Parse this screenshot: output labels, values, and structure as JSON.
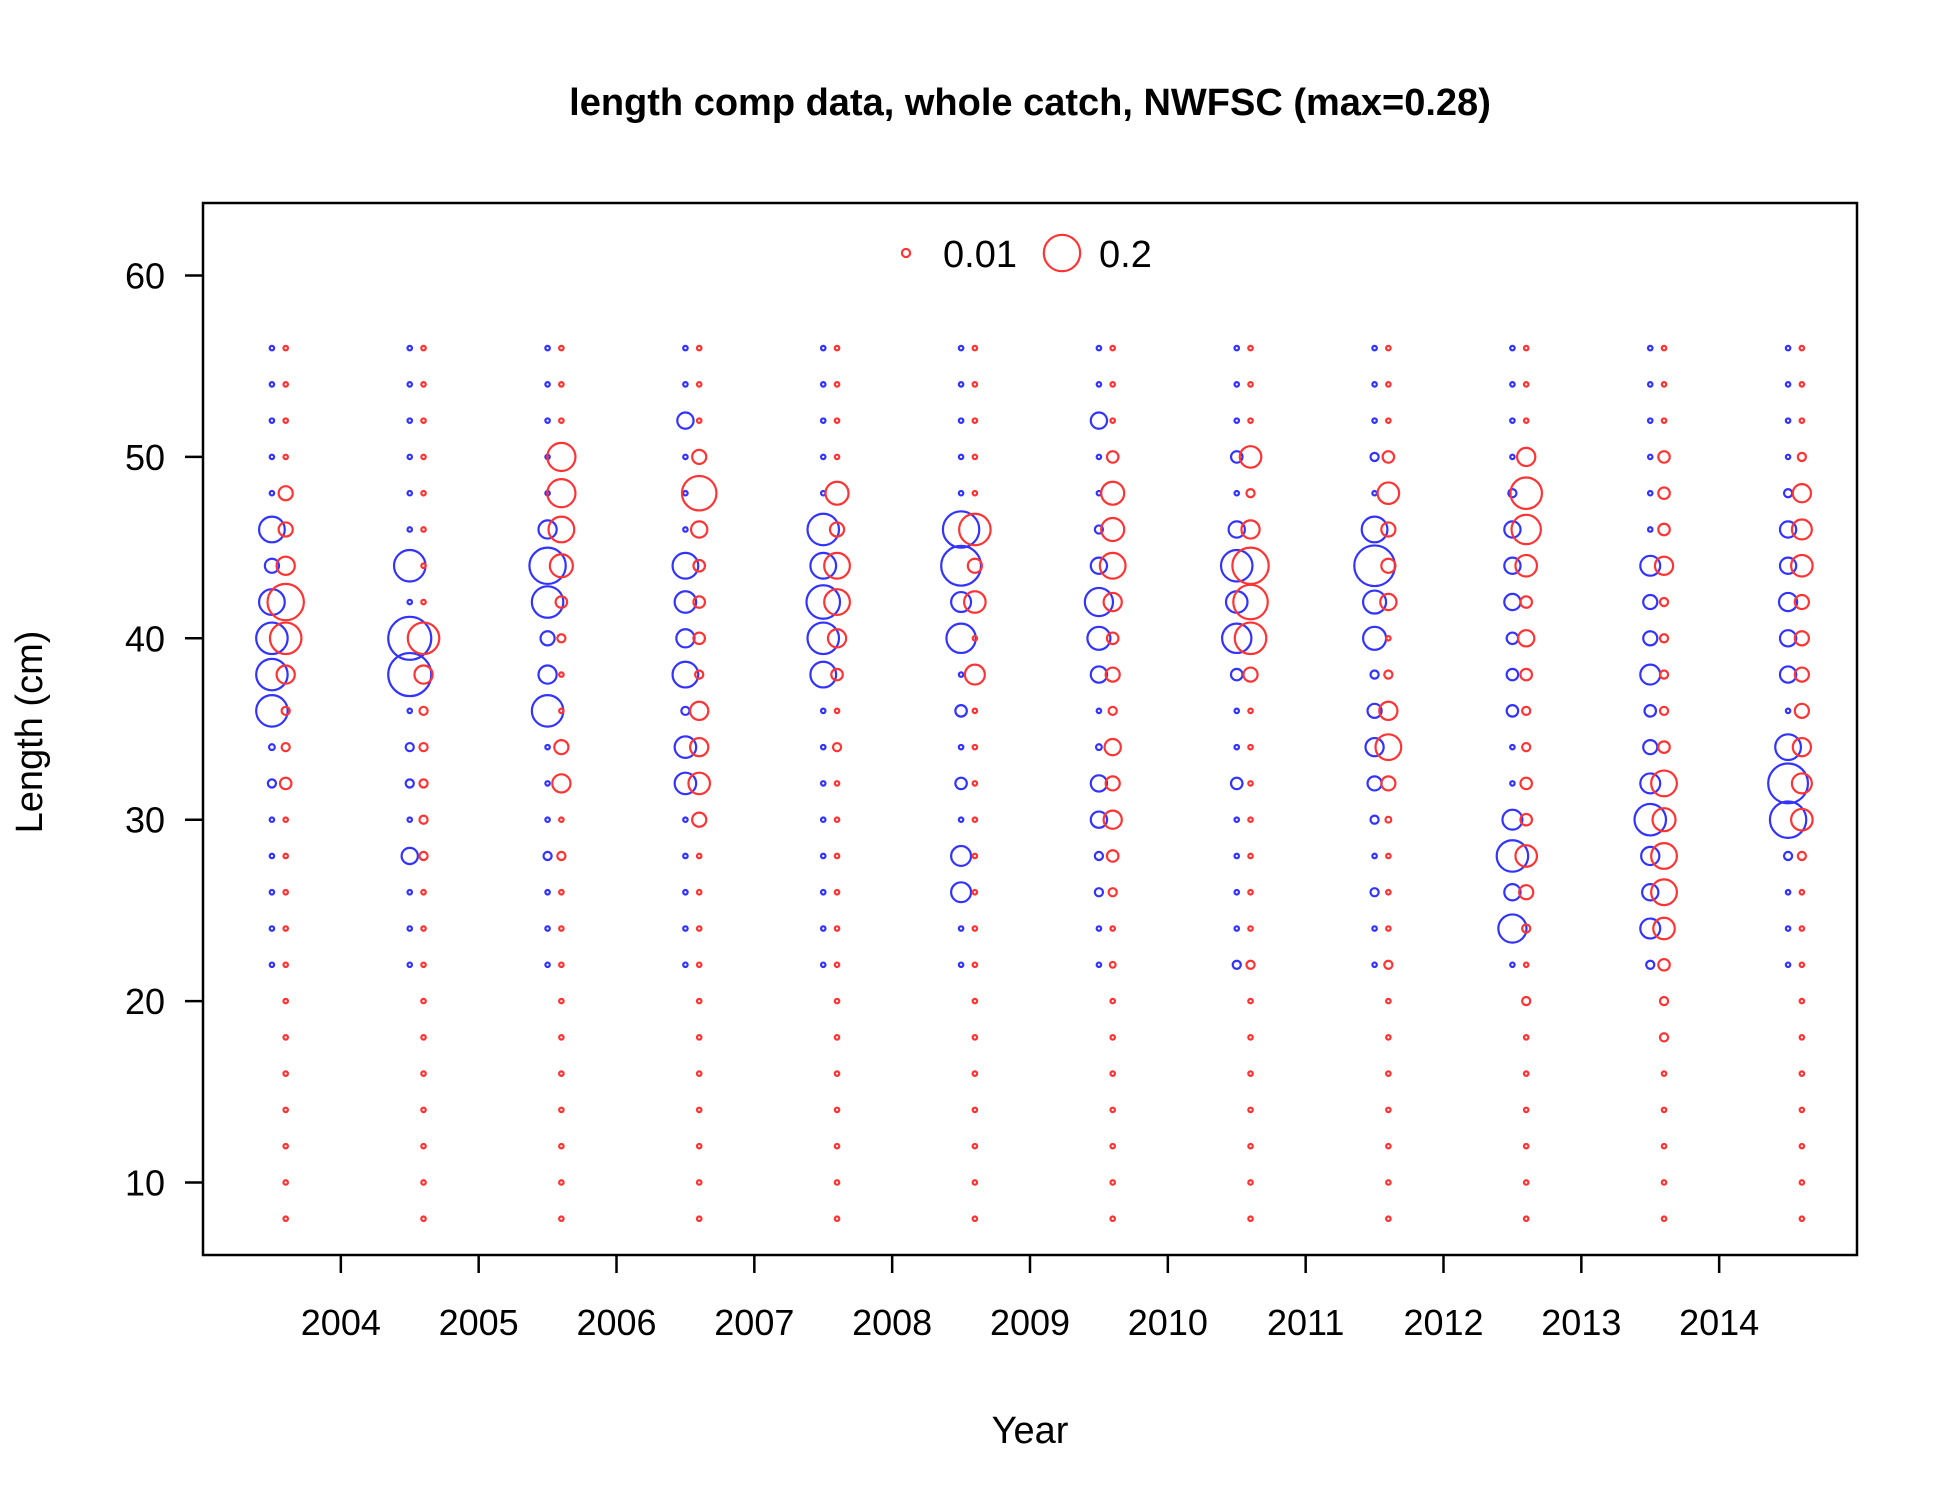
{
  "chart_data": {
    "type": "scatter",
    "subtype": "bubble",
    "title": "length comp data, whole catch, NWFSC (max=0.28)",
    "xlabel": "Year",
    "ylabel": "Length (cm)",
    "xlim": [
      2003,
      2015
    ],
    "ylim": [
      6,
      64
    ],
    "x_ticks": [
      2004,
      2005,
      2006,
      2007,
      2008,
      2009,
      2010,
      2011,
      2012,
      2013,
      2014
    ],
    "y_ticks": [
      10,
      20,
      30,
      40,
      50,
      60
    ],
    "x_tick_labels": [
      "2004",
      "2005",
      "2006",
      "2007",
      "2008",
      "2009",
      "2010",
      "2011",
      "2012",
      "2013",
      "2014"
    ],
    "y_tick_labels": [
      "10",
      "20",
      "30",
      "40",
      "50",
      "60"
    ],
    "grid": false,
    "legend": {
      "placement": "top-center",
      "entries": [
        {
          "label": "0.01",
          "value": 0.01
        },
        {
          "label": "0.2",
          "value": 0.2
        }
      ]
    },
    "max_value": 0.28,
    "colors": {
      "female": "#3333ff",
      "male": "#ff3333"
    },
    "bins": [
      8,
      10,
      12,
      14,
      16,
      18,
      20,
      22,
      24,
      26,
      28,
      30,
      32,
      34,
      36,
      38,
      40,
      42,
      44,
      46,
      48,
      50,
      52,
      54,
      56
    ],
    "series": [
      {
        "years": [
          2003.5,
          2004.5,
          2005.5,
          2006.5,
          2007.5,
          2008.5,
          2009.5,
          2010.5,
          2011.5,
          2012.5,
          2013.5,
          2014.5
        ],
        "values": [
          [
            0,
            0,
            0,
            0,
            0,
            0,
            0,
            0.003,
            0.003,
            0.003,
            0.003,
            0.003,
            0.01,
            0.005,
            0.15,
            0.15,
            0.15,
            0.1,
            0.03,
            0.1,
            0.003,
            0.003,
            0.003,
            0.003,
            0.003
          ],
          [
            0,
            0,
            0,
            0,
            0,
            0,
            0,
            0.003,
            0.003,
            0.003,
            0.04,
            0.003,
            0.01,
            0.01,
            0.003,
            0.28,
            0.28,
            0.003,
            0.15,
            0.003,
            0.003,
            0.003,
            0.003,
            0.003,
            0.003
          ],
          [
            0,
            0,
            0,
            0,
            0,
            0,
            0,
            0.003,
            0.003,
            0.003,
            0.01,
            0.003,
            0.003,
            0.003,
            0.15,
            0.05,
            0.03,
            0.15,
            0.2,
            0.05,
            0.003,
            0.003,
            0.003,
            0.003,
            0.003
          ],
          [
            0,
            0,
            0,
            0,
            0,
            0,
            0,
            0.003,
            0.003,
            0.003,
            0.003,
            0.003,
            0.07,
            0.07,
            0.01,
            0.1,
            0.05,
            0.07,
            0.1,
            0.003,
            0.003,
            0.003,
            0.04,
            0.003,
            0.003
          ],
          [
            0,
            0,
            0,
            0,
            0,
            0,
            0,
            0.003,
            0.003,
            0.003,
            0.003,
            0.003,
            0.003,
            0.003,
            0.003,
            0.1,
            0.15,
            0.17,
            0.1,
            0.15,
            0.003,
            0.003,
            0.003,
            0.003,
            0.003
          ],
          [
            0,
            0,
            0,
            0,
            0,
            0,
            0,
            0.003,
            0.003,
            0.06,
            0.06,
            0.003,
            0.02,
            0.003,
            0.02,
            0.003,
            0.13,
            0.06,
            0.24,
            0.2,
            0.003,
            0.003,
            0.003,
            0.003,
            0.003
          ],
          [
            0,
            0,
            0,
            0,
            0,
            0,
            0,
            0.003,
            0.003,
            0.01,
            0.01,
            0.04,
            0.04,
            0.005,
            0.003,
            0.04,
            0.08,
            0.12,
            0.04,
            0.01,
            0.003,
            0.003,
            0.04,
            0.003,
            0.003
          ],
          [
            0,
            0,
            0,
            0,
            0,
            0,
            0,
            0.01,
            0.003,
            0.003,
            0.003,
            0.003,
            0.02,
            0.003,
            0.003,
            0.02,
            0.13,
            0.07,
            0.15,
            0.04,
            0.003,
            0.02,
            0.003,
            0.003,
            0.003
          ],
          [
            0,
            0,
            0,
            0,
            0,
            0,
            0,
            0.003,
            0.003,
            0.01,
            0.003,
            0.01,
            0.03,
            0.05,
            0.03,
            0.01,
            0.08,
            0.08,
            0.25,
            0.1,
            0.003,
            0.01,
            0.003,
            0.003,
            0.003
          ],
          [
            0,
            0,
            0,
            0,
            0,
            0,
            0,
            0.003,
            0.12,
            0.04,
            0.15,
            0.06,
            0.003,
            0.003,
            0.02,
            0.02,
            0.02,
            0.04,
            0.04,
            0.04,
            0.01,
            0.003,
            0.003,
            0.003,
            0.003
          ],
          [
            0,
            0,
            0,
            0,
            0,
            0,
            0,
            0.01,
            0.06,
            0.04,
            0.05,
            0.15,
            0.06,
            0.03,
            0.02,
            0.06,
            0.03,
            0.03,
            0.06,
            0.003,
            0.003,
            0.003,
            0.003,
            0.003,
            0.003
          ],
          [
            0,
            0,
            0,
            0,
            0,
            0,
            0,
            0.003,
            0.003,
            0.003,
            0.01,
            0.2,
            0.24,
            0.1,
            0.003,
            0.04,
            0.04,
            0.05,
            0.04,
            0.04,
            0.01,
            0.003,
            0.003,
            0.003,
            0.003
          ]
        ]
      },
      {
        "years": [
          2003.6,
          2004.6,
          2005.6,
          2006.6,
          2007.6,
          2008.6,
          2009.6,
          2010.6,
          2011.6,
          2012.6,
          2013.6,
          2014.6
        ],
        "values": [
          [
            0.003,
            0.003,
            0.003,
            0.003,
            0.003,
            0.003,
            0.003,
            0.003,
            0.003,
            0.003,
            0.003,
            0.003,
            0.02,
            0.01,
            0.01,
            0.05,
            0.15,
            0.2,
            0.05,
            0.03,
            0.03,
            0.003,
            0.003,
            0.003,
            0.003
          ],
          [
            0.003,
            0.003,
            0.003,
            0.003,
            0.003,
            0.003,
            0.003,
            0.003,
            0.003,
            0.003,
            0.01,
            0.01,
            0.01,
            0.01,
            0.01,
            0.05,
            0.15,
            0.003,
            0.003,
            0.003,
            0.003,
            0.003,
            0.003,
            0.003,
            0.003
          ],
          [
            0.003,
            0.003,
            0.003,
            0.003,
            0.003,
            0.003,
            0.003,
            0.003,
            0.003,
            0.003,
            0.01,
            0.003,
            0.05,
            0.03,
            0.003,
            0.003,
            0.01,
            0.02,
            0.08,
            0.1,
            0.12,
            0.12,
            0.003,
            0.003,
            0.003
          ],
          [
            0.003,
            0.003,
            0.003,
            0.003,
            0.003,
            0.003,
            0.003,
            0.003,
            0.003,
            0.003,
            0.003,
            0.03,
            0.07,
            0.05,
            0.05,
            0.01,
            0.02,
            0.02,
            0.02,
            0.04,
            0.18,
            0.03,
            0.003,
            0.003,
            0.003
          ],
          [
            0.003,
            0.003,
            0.003,
            0.003,
            0.003,
            0.003,
            0.003,
            0.003,
            0.003,
            0.003,
            0.003,
            0.003,
            0.003,
            0.01,
            0.003,
            0.02,
            0.05,
            0.1,
            0.1,
            0.03,
            0.08,
            0.003,
            0.003,
            0.003,
            0.003
          ],
          [
            0.003,
            0.003,
            0.003,
            0.003,
            0.003,
            0.003,
            0.003,
            0.003,
            0.003,
            0.003,
            0.003,
            0.003,
            0.003,
            0.003,
            0.003,
            0.06,
            0.003,
            0.07,
            0.03,
            0.15,
            0.003,
            0.003,
            0.003,
            0.003,
            0.003
          ],
          [
            0.003,
            0.003,
            0.003,
            0.003,
            0.003,
            0.003,
            0.003,
            0.005,
            0.003,
            0.01,
            0.02,
            0.05,
            0.03,
            0.04,
            0.01,
            0.03,
            0.02,
            0.05,
            0.1,
            0.08,
            0.08,
            0.02,
            0.003,
            0.003,
            0.003
          ],
          [
            0.003,
            0.003,
            0.003,
            0.003,
            0.003,
            0.003,
            0.003,
            0.01,
            0.003,
            0.003,
            0.003,
            0.003,
            0.003,
            0.003,
            0.003,
            0.03,
            0.15,
            0.18,
            0.2,
            0.05,
            0.01,
            0.07,
            0.003,
            0.003,
            0.003
          ],
          [
            0.003,
            0.003,
            0.003,
            0.003,
            0.003,
            0.003,
            0.003,
            0.01,
            0.003,
            0.003,
            0.003,
            0.005,
            0.03,
            0.1,
            0.05,
            0.01,
            0.003,
            0.04,
            0.03,
            0.03,
            0.07,
            0.02,
            0.003,
            0.003,
            0.003
          ],
          [
            0.003,
            0.003,
            0.003,
            0.003,
            0.003,
            0.003,
            0.01,
            0.003,
            0.01,
            0.03,
            0.07,
            0.02,
            0.02,
            0.01,
            0.01,
            0.02,
            0.04,
            0.02,
            0.07,
            0.13,
            0.15,
            0.05,
            0.003,
            0.003,
            0.003
          ],
          [
            0.003,
            0.003,
            0.003,
            0.003,
            0.003,
            0.01,
            0.01,
            0.02,
            0.07,
            0.1,
            0.1,
            0.08,
            0.1,
            0.02,
            0.01,
            0.01,
            0.01,
            0.01,
            0.05,
            0.02,
            0.02,
            0.02,
            0.003,
            0.003,
            0.003
          ],
          [
            0.003,
            0.003,
            0.003,
            0.003,
            0.003,
            0.003,
            0.003,
            0.003,
            0.003,
            0.003,
            0.01,
            0.07,
            0.06,
            0.05,
            0.03,
            0.03,
            0.03,
            0.03,
            0.07,
            0.06,
            0.05,
            0.01,
            0.003,
            0.003,
            0.003
          ]
        ]
      }
    ]
  }
}
